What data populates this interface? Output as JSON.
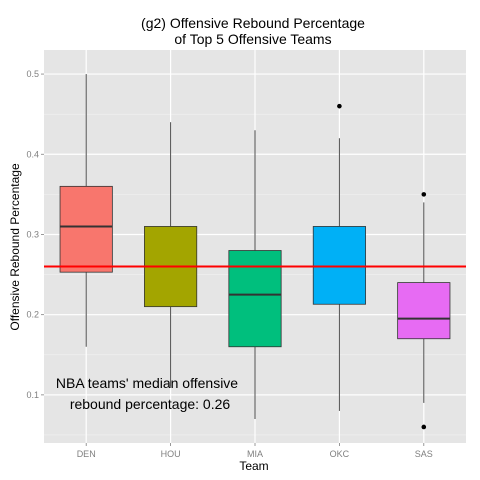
{
  "chart_data": {
    "type": "box",
    "title_line1": "(g2) Offensive Rebound Percentage",
    "title_line2": "of Top 5 Offensive Teams",
    "xlabel": "Team",
    "ylabel": "Offensive Rebound Percentage",
    "ylim": [
      0.04,
      0.53
    ],
    "yticks": [
      0.1,
      0.2,
      0.3,
      0.4,
      0.5
    ],
    "ytick_labels": [
      "0.1",
      "0.2",
      "0.3",
      "0.4",
      "0.5"
    ],
    "grid": true,
    "background": "#e5e5e5",
    "categories": [
      "DEN",
      "HOU",
      "MIA",
      "OKC",
      "SAS"
    ],
    "boxes": [
      {
        "team": "DEN",
        "min": 0.16,
        "q1": 0.253,
        "median": 0.31,
        "q3": 0.36,
        "max": 0.5,
        "outliers": [],
        "color": "#f8766d"
      },
      {
        "team": "HOU",
        "min": 0.11,
        "q1": 0.21,
        "median": 0.26,
        "q3": 0.31,
        "max": 0.44,
        "outliers": [],
        "color": "#a3a500"
      },
      {
        "team": "MIA",
        "min": 0.07,
        "q1": 0.16,
        "median": 0.225,
        "q3": 0.28,
        "max": 0.43,
        "outliers": [],
        "color": "#00bf7d"
      },
      {
        "team": "OKC",
        "min": 0.08,
        "q1": 0.213,
        "median": 0.26,
        "q3": 0.31,
        "max": 0.42,
        "outliers": [
          0.46
        ],
        "color": "#00b0f6"
      },
      {
        "team": "SAS",
        "min": 0.09,
        "q1": 0.17,
        "median": 0.195,
        "q3": 0.24,
        "max": 0.34,
        "outliers": [
          0.35,
          0.06
        ],
        "color": "#e76bf3"
      }
    ],
    "reference_line": {
      "value": 0.26,
      "color": "#ff0000"
    },
    "annotation_line1": "NBA teams' median offensive",
    "annotation_line2": "rebound percentage: 0.26"
  }
}
